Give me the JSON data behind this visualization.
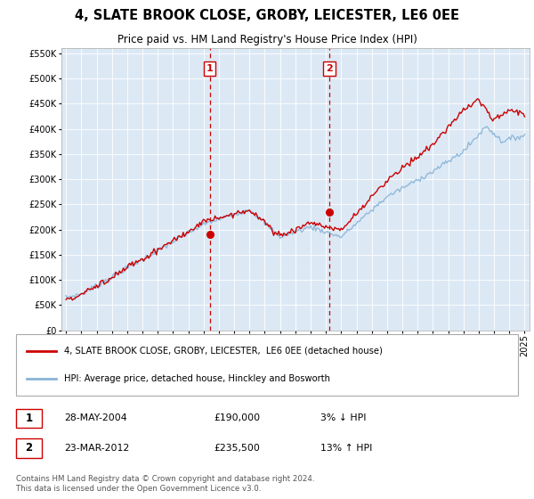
{
  "title": "4, SLATE BROOK CLOSE, GROBY, LEICESTER, LE6 0EE",
  "subtitle": "Price paid vs. HM Land Registry's House Price Index (HPI)",
  "legend_line1": "4, SLATE BROOK CLOSE, GROBY, LEICESTER,  LE6 0EE (detached house)",
  "legend_line2": "HPI: Average price, detached house, Hinckley and Bosworth",
  "footer": "Contains HM Land Registry data © Crown copyright and database right 2024.\nThis data is licensed under the Open Government Licence v3.0.",
  "sale1_date": "28-MAY-2004",
  "sale1_price": "£190,000",
  "sale1_hpi": "3% ↓ HPI",
  "sale2_date": "23-MAR-2012",
  "sale2_price": "£235,500",
  "sale2_hpi": "13% ↑ HPI",
  "sale1_year": 2004.41,
  "sale1_value": 190000,
  "sale2_year": 2012.22,
  "sale2_value": 235500,
  "hpi_color": "#8ab4d8",
  "price_color": "#cc0000",
  "background_plot": "#dce9f5",
  "vline_color": "#cc0000",
  "ylim_max": 560000,
  "xlim_start": 1994.7,
  "xlim_end": 2025.3
}
